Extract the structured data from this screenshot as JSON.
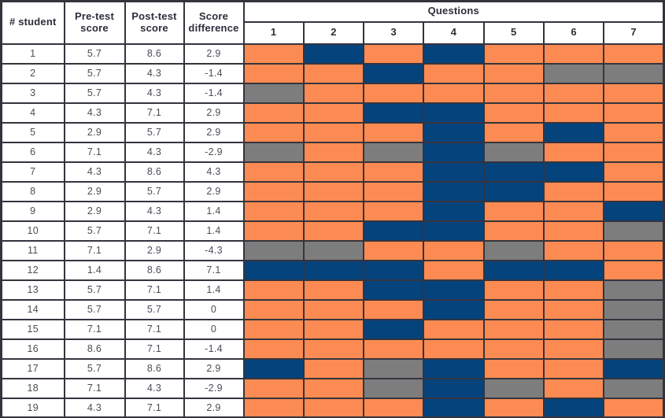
{
  "chart_data": {
    "type": "table",
    "description": "Student pre-test vs post-test scores with per-question result heatmap",
    "headers": {
      "student": "# student",
      "pretest": "Pre-test score",
      "posttest": "Post-test score",
      "diff": "Score difference",
      "questions": "Questions"
    },
    "question_numbers": [
      "1",
      "2",
      "3",
      "4",
      "5",
      "6",
      "7"
    ],
    "colors": {
      "orange": "#fc8b53",
      "blue": "#05437d",
      "gray": "#7d7d7d",
      "border": "#35343d",
      "header_text": "#2e2d3b",
      "body_text": "#4c4c58",
      "background": "#ffffff"
    },
    "color_key": {
      "O": "orange",
      "B": "blue",
      "G": "gray"
    },
    "rows": [
      {
        "student": "1",
        "pre": "5.7",
        "post": "8.6",
        "diff": "2.9",
        "q": [
          "O",
          "B",
          "O",
          "B",
          "O",
          "O",
          "O"
        ]
      },
      {
        "student": "2",
        "pre": "5.7",
        "post": "4.3",
        "diff": "-1.4",
        "q": [
          "O",
          "O",
          "B",
          "O",
          "O",
          "G",
          "G"
        ]
      },
      {
        "student": "3",
        "pre": "5.7",
        "post": "4.3",
        "diff": "-1.4",
        "q": [
          "G",
          "O",
          "O",
          "O",
          "O",
          "O",
          "O"
        ]
      },
      {
        "student": "4",
        "pre": "4.3",
        "post": "7.1",
        "diff": "2.9",
        "q": [
          "O",
          "O",
          "B",
          "B",
          "O",
          "O",
          "O"
        ]
      },
      {
        "student": "5",
        "pre": "2.9",
        "post": "5.7",
        "diff": "2.9",
        "q": [
          "O",
          "O",
          "O",
          "B",
          "O",
          "B",
          "O"
        ]
      },
      {
        "student": "6",
        "pre": "7.1",
        "post": "4.3",
        "diff": "-2.9",
        "q": [
          "G",
          "O",
          "G",
          "B",
          "G",
          "O",
          "O"
        ]
      },
      {
        "student": "7",
        "pre": "4.3",
        "post": "8.6",
        "diff": "4.3",
        "q": [
          "O",
          "O",
          "O",
          "B",
          "B",
          "B",
          "O"
        ]
      },
      {
        "student": "8",
        "pre": "2.9",
        "post": "5.7",
        "diff": "2.9",
        "q": [
          "O",
          "O",
          "O",
          "B",
          "B",
          "O",
          "O"
        ]
      },
      {
        "student": "9",
        "pre": "2.9",
        "post": "4.3",
        "diff": "1.4",
        "q": [
          "O",
          "O",
          "O",
          "B",
          "O",
          "O",
          "B"
        ]
      },
      {
        "student": "10",
        "pre": "5.7",
        "post": "7.1",
        "diff": "1.4",
        "q": [
          "O",
          "O",
          "B",
          "B",
          "O",
          "O",
          "G"
        ]
      },
      {
        "student": "11",
        "pre": "7.1",
        "post": "2.9",
        "diff": "-4.3",
        "q": [
          "G",
          "G",
          "O",
          "O",
          "G",
          "O",
          "O"
        ]
      },
      {
        "student": "12",
        "pre": "1.4",
        "post": "8.6",
        "diff": "7.1",
        "q": [
          "B",
          "B",
          "B",
          "O",
          "B",
          "B",
          "O"
        ]
      },
      {
        "student": "13",
        "pre": "5.7",
        "post": "7.1",
        "diff": "1.4",
        "q": [
          "O",
          "O",
          "B",
          "B",
          "O",
          "O",
          "G"
        ]
      },
      {
        "student": "14",
        "pre": "5.7",
        "post": "5.7",
        "diff": "0",
        "q": [
          "O",
          "O",
          "O",
          "B",
          "O",
          "O",
          "G"
        ]
      },
      {
        "student": "15",
        "pre": "7.1",
        "post": "7.1",
        "diff": "0",
        "q": [
          "O",
          "O",
          "B",
          "O",
          "O",
          "O",
          "G"
        ]
      },
      {
        "student": "16",
        "pre": "8.6",
        "post": "7.1",
        "diff": "-1.4",
        "q": [
          "O",
          "O",
          "O",
          "O",
          "O",
          "O",
          "G"
        ]
      },
      {
        "student": "17",
        "pre": "5.7",
        "post": "8.6",
        "diff": "2.9",
        "q": [
          "B",
          "O",
          "G",
          "B",
          "O",
          "O",
          "B"
        ]
      },
      {
        "student": "18",
        "pre": "7.1",
        "post": "4.3",
        "diff": "-2.9",
        "q": [
          "O",
          "O",
          "G",
          "B",
          "G",
          "O",
          "G"
        ]
      },
      {
        "student": "19",
        "pre": "4.3",
        "post": "7.1",
        "diff": "2.9",
        "q": [
          "O",
          "O",
          "O",
          "B",
          "O",
          "B",
          "O"
        ]
      }
    ]
  }
}
